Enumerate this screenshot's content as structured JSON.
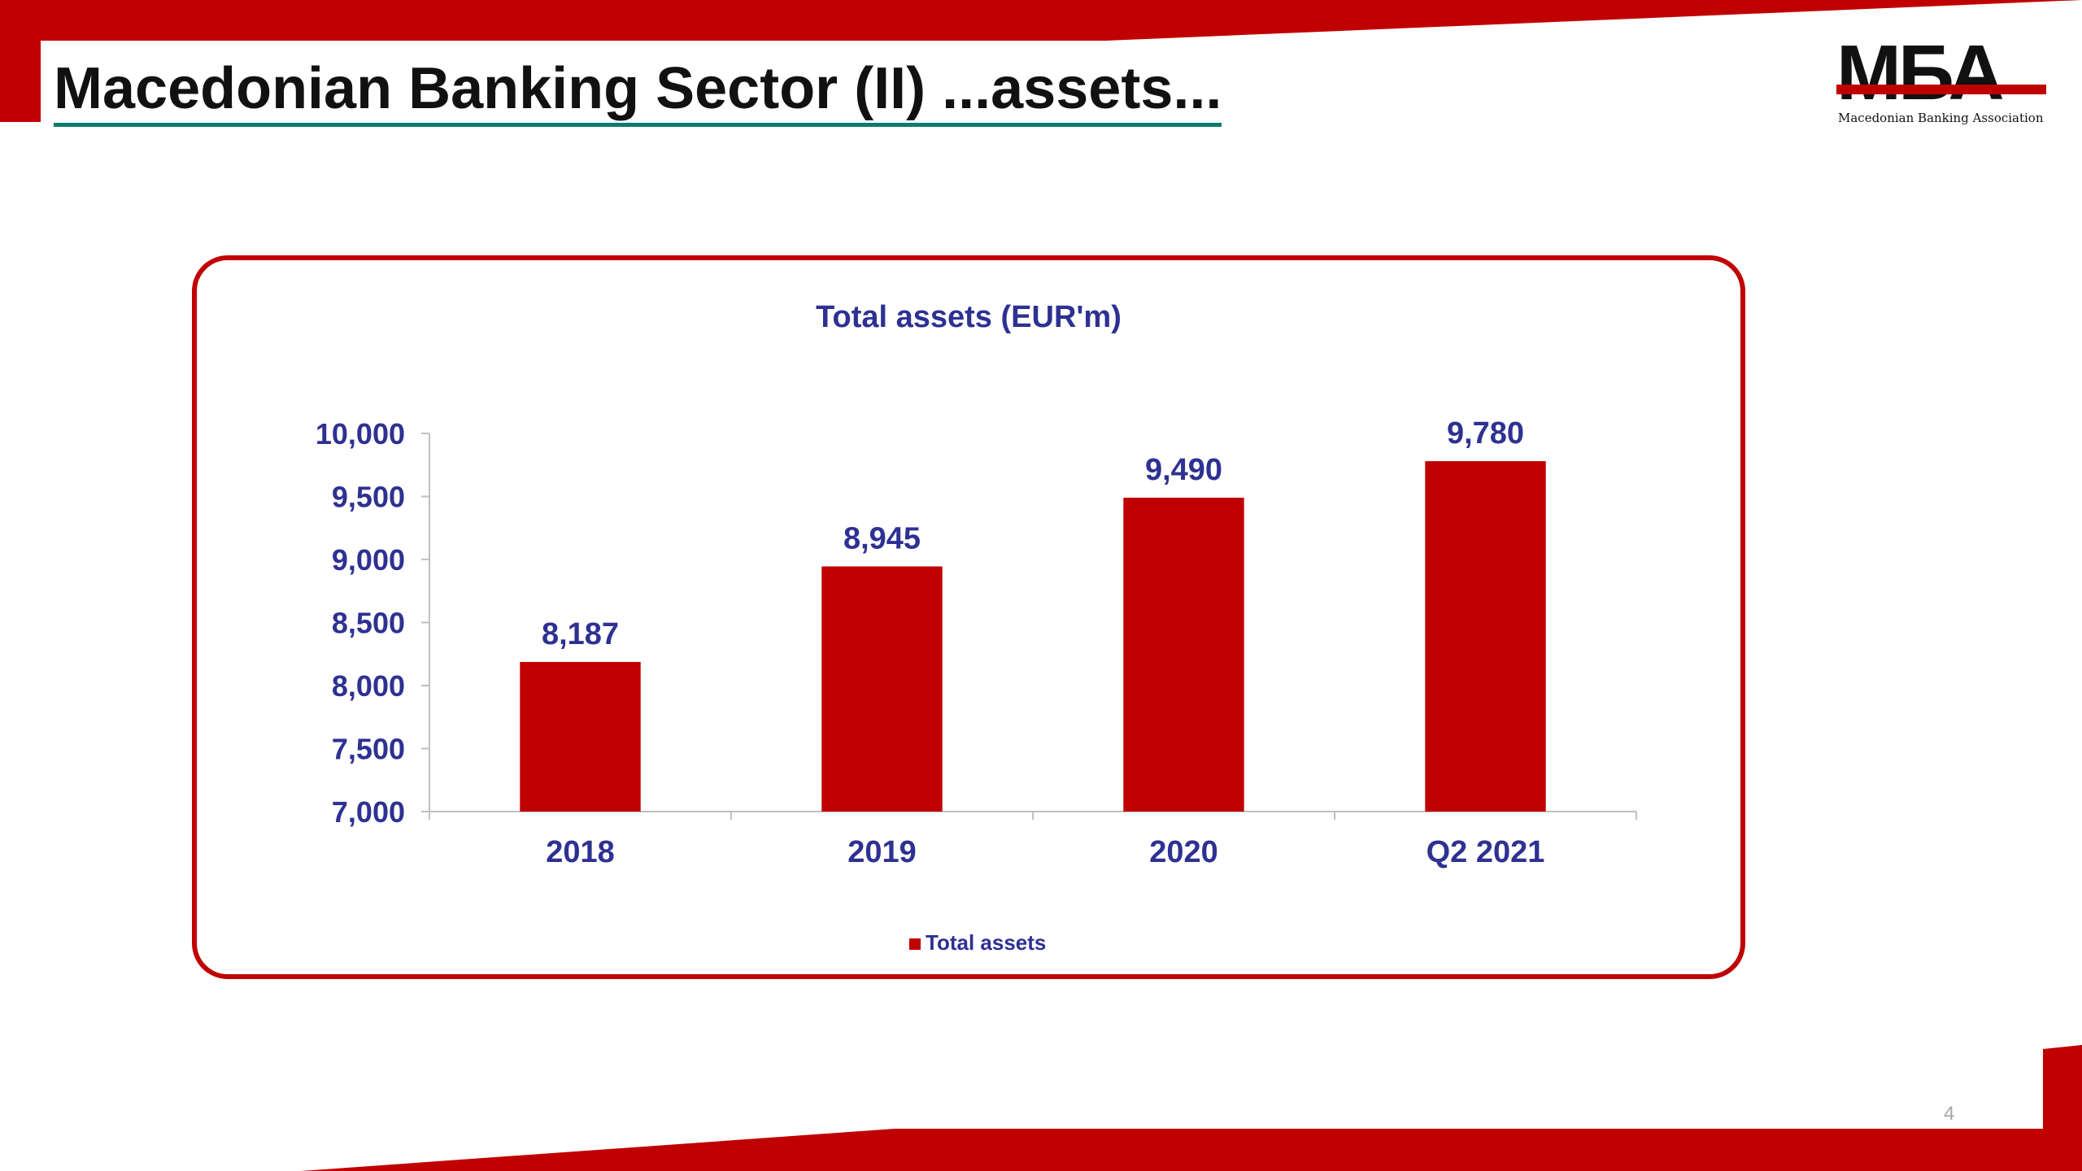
{
  "slide": {
    "title": "Macedonian Banking Sector (II) ...assets...",
    "page_number": "4"
  },
  "logo": {
    "mark": "MБА",
    "subtitle": "Macedonian Banking Association"
  },
  "colors": {
    "accent": "#c00000",
    "chart_text": "#2e3192",
    "title_underline": "#0e7a6f"
  },
  "chart_data": {
    "type": "bar",
    "title": "Total assets (EUR'm)",
    "categories": [
      "2018",
      "2019",
      "2020",
      "Q2 2021"
    ],
    "series": [
      {
        "name": "Total assets",
        "values": [
          8187,
          8945,
          9490,
          9780
        ],
        "color": "#c00000"
      }
    ],
    "data_labels": [
      "8,187",
      "8,945",
      "9,490",
      "9,780"
    ],
    "ylim": [
      7000,
      10000
    ],
    "yticks": [
      7000,
      7500,
      8000,
      8500,
      9000,
      9500,
      10000
    ],
    "ytick_labels": [
      "7,000",
      "7,500",
      "8,000",
      "8,500",
      "9,000",
      "9,500",
      "10,000"
    ],
    "grid": false,
    "legend_position": "bottom"
  }
}
